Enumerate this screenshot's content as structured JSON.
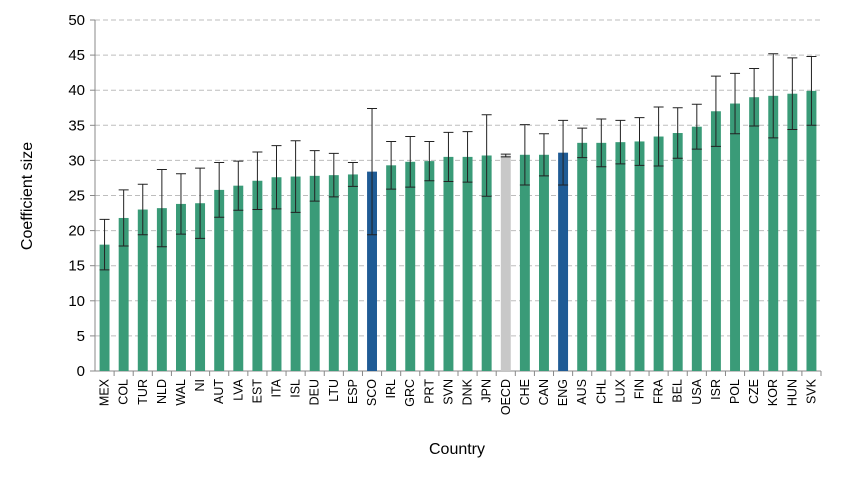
{
  "chart_data": {
    "type": "bar",
    "x_label": "Country",
    "y_label": "Coefficient size",
    "categories": [
      "MEX",
      "COL",
      "TUR",
      "NLD",
      "WAL",
      "NI",
      "AUT",
      "LVA",
      "EST",
      "ITA",
      "ISL",
      "DEU",
      "LTU",
      "ESP",
      "SCO",
      "IRL",
      "GRC",
      "PRT",
      "SVN",
      "DNK",
      "JPN",
      "OECD",
      "CHE",
      "CAN",
      "ENG",
      "AUS",
      "CHL",
      "LUX",
      "FIN",
      "FRA",
      "BEL",
      "USA",
      "ISR",
      "POL",
      "CZE",
      "KOR",
      "HUN",
      "SVK"
    ],
    "values": [
      18.0,
      21.8,
      23.0,
      23.2,
      23.8,
      23.9,
      25.8,
      26.4,
      27.1,
      27.6,
      27.7,
      27.8,
      27.9,
      28.0,
      28.4,
      29.3,
      29.8,
      29.9,
      30.5,
      30.5,
      30.7,
      30.7,
      30.8,
      30.8,
      31.1,
      32.5,
      32.5,
      32.6,
      32.7,
      33.4,
      33.9,
      34.8,
      37.0,
      38.1,
      39.0,
      39.2,
      39.5,
      39.9
    ],
    "errors": [
      3.6,
      4.0,
      3.6,
      5.5,
      4.3,
      5.0,
      3.9,
      3.5,
      4.1,
      4.5,
      5.1,
      3.6,
      3.1,
      1.7,
      9.0,
      3.4,
      3.6,
      2.8,
      3.5,
      3.6,
      5.8,
      0.2,
      4.3,
      3.0,
      4.6,
      2.1,
      3.4,
      3.1,
      3.4,
      4.2,
      3.6,
      3.2,
      5.0,
      4.3,
      4.1,
      6.0,
      5.1,
      4.9
    ],
    "colors": [
      "#3a9b78",
      "#3a9b78",
      "#3a9b78",
      "#3a9b78",
      "#3a9b78",
      "#3a9b78",
      "#3a9b78",
      "#3a9b78",
      "#3a9b78",
      "#3a9b78",
      "#3a9b78",
      "#3a9b78",
      "#3a9b78",
      "#3a9b78",
      "#1f5b95",
      "#3a9b78",
      "#3a9b78",
      "#3a9b78",
      "#3a9b78",
      "#3a9b78",
      "#3a9b78",
      "#c8c8c8",
      "#3a9b78",
      "#3a9b78",
      "#1f5b95",
      "#3a9b78",
      "#3a9b78",
      "#3a9b78",
      "#3a9b78",
      "#3a9b78",
      "#3a9b78",
      "#3a9b78",
      "#3a9b78",
      "#3a9b78",
      "#3a9b78",
      "#3a9b78",
      "#3a9b78",
      "#3a9b78"
    ],
    "ylim": [
      0,
      50
    ],
    "yticks": [
      0,
      5,
      10,
      15,
      20,
      25,
      30,
      35,
      40,
      45,
      50
    ],
    "grid": true
  }
}
